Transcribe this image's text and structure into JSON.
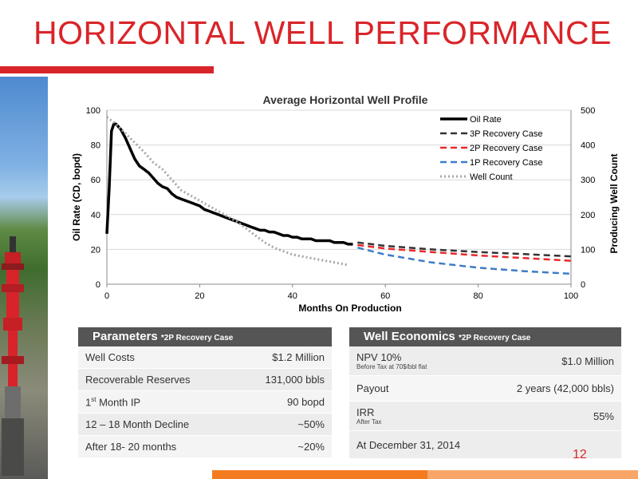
{
  "header": {
    "title": "HORIZONTAL WELL PERFORMANCE",
    "accent_color": "#d9252a"
  },
  "chart_data": {
    "type": "line",
    "title": "Average Horizontal Well  Profile",
    "xlabel": "Months On Production",
    "ylabel": "Oil Rate (CD, bopd)",
    "y2label": "Producing Well Count",
    "xlim": [
      0,
      100
    ],
    "ylim": [
      0,
      100
    ],
    "y2lim": [
      0,
      500
    ],
    "x_ticks": [
      "0",
      "20",
      "40",
      "60",
      "80",
      "100"
    ],
    "y_ticks": [
      "0",
      "20",
      "40",
      "60",
      "80",
      "100"
    ],
    "y2_ticks": [
      "0",
      "100",
      "200",
      "300",
      "400",
      "500"
    ],
    "grid": "horizontal",
    "legend_position": "top-right",
    "series": [
      {
        "name": "Oil Rate",
        "axis": "left",
        "style": "solid",
        "color": "#000000",
        "x": [
          0,
          0.5,
          1,
          1.5,
          2,
          3,
          4,
          5,
          6,
          7,
          8,
          9,
          10,
          11,
          12,
          13,
          14,
          15,
          16,
          17,
          18,
          19,
          20,
          21,
          22,
          23,
          24,
          25,
          26,
          27,
          28,
          29,
          30,
          31,
          32,
          33,
          34,
          35,
          36,
          37,
          38,
          39,
          40,
          41,
          42,
          43,
          44,
          45,
          46,
          47,
          48,
          49,
          50,
          51,
          52,
          53
        ],
        "y": [
          29,
          55,
          88,
          92,
          92,
          89,
          84,
          78,
          72,
          68,
          66,
          64,
          61,
          58,
          56,
          55,
          52,
          50,
          49,
          48,
          47,
          46,
          45,
          43,
          42,
          41,
          40,
          39,
          38,
          37,
          36,
          35,
          34,
          33,
          32,
          31,
          31,
          30,
          30,
          29,
          28,
          28,
          27,
          27,
          26,
          26,
          26,
          25,
          25,
          25,
          25,
          24,
          24,
          24,
          23,
          23
        ]
      },
      {
        "name": "3P Recovery Case",
        "axis": "left",
        "style": "dashed",
        "color": "#333333",
        "x": [
          54,
          60,
          70,
          80,
          90,
          100
        ],
        "y": [
          24,
          22,
          20,
          18.5,
          17.3,
          16
        ]
      },
      {
        "name": "2P Recovery Case",
        "axis": "left",
        "style": "dashed",
        "color": "#e8292a",
        "x": [
          54,
          60,
          70,
          80,
          90,
          100
        ],
        "y": [
          22.5,
          20.5,
          18.5,
          16.5,
          15,
          13.5
        ]
      },
      {
        "name": "1P Recovery Case",
        "axis": "left",
        "style": "dashed",
        "color": "#3d7cc9",
        "x": [
          54,
          60,
          70,
          80,
          90,
          100
        ],
        "y": [
          21,
          17,
          12.5,
          9.5,
          7.5,
          6
        ]
      },
      {
        "name": "Well Count",
        "axis": "right",
        "style": "dotted",
        "color": "#a6a6a6",
        "x": [
          0,
          2,
          5,
          8,
          10,
          12,
          14,
          16,
          18,
          20,
          22,
          24,
          26,
          28,
          30,
          32,
          34,
          36,
          38,
          40,
          42,
          44,
          46,
          48,
          50,
          52
        ],
        "y": [
          480,
          460,
          420,
          380,
          350,
          330,
          300,
          270,
          255,
          240,
          225,
          210,
          195,
          180,
          160,
          140,
          120,
          105,
          95,
          85,
          80,
          75,
          70,
          65,
          60,
          55
        ]
      }
    ]
  },
  "parameters": {
    "header_main": "Parameters ",
    "header_sub": "*2P Recovery Case",
    "rows": [
      {
        "label": "Well Costs",
        "value": "$1.2 Million"
      },
      {
        "label": "Recoverable Reserves",
        "value": "131,000 bbls"
      },
      {
        "label_pre": "1",
        "label_sup": "st",
        "label_post": " Month IP",
        "value": "90 bopd"
      },
      {
        "label": "12 – 18 Month Decline",
        "value": "~50%"
      },
      {
        "label": "After 18- 20 months",
        "value": "~20%"
      }
    ]
  },
  "economics": {
    "header_main": "Well Economics ",
    "header_sub": "*2P Recovery Case",
    "npv_label": "NPV 10%",
    "npv_note": "Before Tax at 70$/bbl flat",
    "npv_value": "$1.0 Million",
    "payout_label": "Payout",
    "payout_value": "2 years (42,000 bbls)",
    "irr_label": "IRR",
    "irr_note": "After Tax",
    "irr_value": "55%",
    "date_text": "At December 31, 2014"
  },
  "footer": {
    "page_number": "12",
    "bar_color_1": "#f47b20",
    "bar_color_2": "#f8a567"
  }
}
